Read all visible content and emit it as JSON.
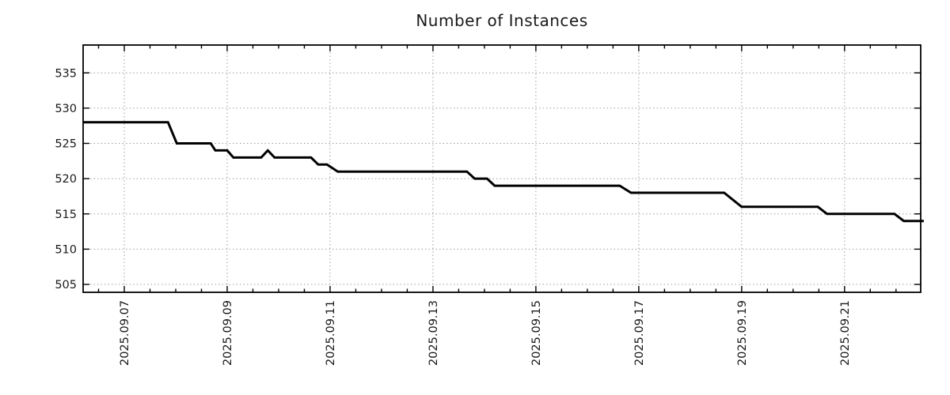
{
  "chart_data": {
    "type": "line",
    "title": "Number of Instances",
    "xlabel": "",
    "ylabel": "",
    "grid": true,
    "legend": "none",
    "xlim": [
      6.2,
      22.48
    ],
    "ylim": [
      503.88,
      538.95
    ],
    "x_ticks": [
      {
        "pos": 7,
        "label": "2025.09.07"
      },
      {
        "pos": 9,
        "label": "2025.09.09"
      },
      {
        "pos": 11,
        "label": "2025.09.11"
      },
      {
        "pos": 13,
        "label": "2025.09.13"
      },
      {
        "pos": 15,
        "label": "2025.09.15"
      },
      {
        "pos": 17,
        "label": "2025.09.17"
      },
      {
        "pos": 19,
        "label": "2025.09.19"
      },
      {
        "pos": 21,
        "label": "2025.09.21"
      }
    ],
    "x_minor_step": 0.5,
    "y_ticks": [
      {
        "pos": 505,
        "label": "505"
      },
      {
        "pos": 510,
        "label": "510"
      },
      {
        "pos": 515,
        "label": "515"
      },
      {
        "pos": 520,
        "label": "520"
      },
      {
        "pos": 525,
        "label": "525"
      },
      {
        "pos": 530,
        "label": "530"
      },
      {
        "pos": 535,
        "label": "535"
      }
    ],
    "series": [
      {
        "name": "instances",
        "color": "#000000",
        "points": [
          [
            6.2,
            528
          ],
          [
            7.85,
            528
          ],
          [
            8.02,
            525
          ],
          [
            8.68,
            525
          ],
          [
            8.77,
            524
          ],
          [
            9.0,
            524
          ],
          [
            9.12,
            523
          ],
          [
            9.66,
            523
          ],
          [
            9.79,
            524
          ],
          [
            9.92,
            523
          ],
          [
            10.63,
            523
          ],
          [
            10.77,
            522
          ],
          [
            10.94,
            522
          ],
          [
            11.15,
            521
          ],
          [
            13.66,
            521
          ],
          [
            13.81,
            520
          ],
          [
            14.05,
            520
          ],
          [
            14.2,
            519
          ],
          [
            16.63,
            519
          ],
          [
            16.85,
            518
          ],
          [
            18.66,
            518
          ],
          [
            19.0,
            516
          ],
          [
            20.48,
            516
          ],
          [
            20.66,
            515
          ],
          [
            21.97,
            515
          ],
          [
            22.15,
            514
          ],
          [
            22.54,
            514
          ]
        ]
      }
    ],
    "colors": {
      "line": "#000000",
      "grid": "#9e9e9e",
      "border": "#000000",
      "text": "#1a1a1a",
      "background": "#ffffff"
    }
  }
}
